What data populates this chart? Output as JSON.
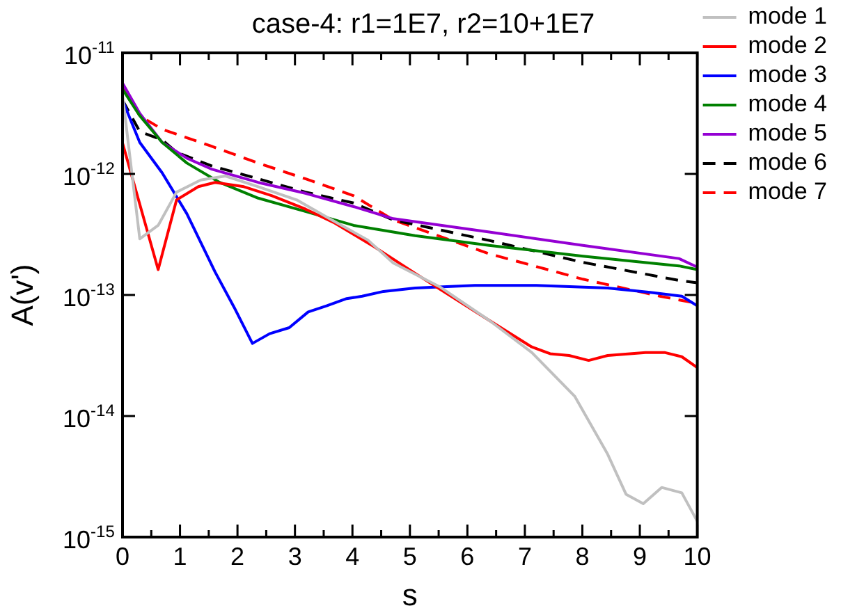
{
  "chart_data": {
    "type": "line",
    "title": "case-4: r1=1E7, r2=10+1E7",
    "xlabel": "s",
    "ylabel": "A(v')",
    "log": "y",
    "grid": false,
    "legend": "right",
    "marker": "none",
    "xlim": [
      0,
      10
    ],
    "xticks": [
      0,
      {
        "value": 0.5,
        "label": null
      },
      1,
      {
        "value": 1.5,
        "label": null
      },
      2,
      {
        "value": 2.5,
        "label": null
      },
      3,
      {
        "value": 3.5,
        "label": null
      },
      4,
      {
        "value": 4.5,
        "label": null
      },
      5,
      {
        "value": 5.5,
        "label": null
      },
      6,
      {
        "value": 6.5,
        "label": null
      },
      7,
      {
        "value": 7.5,
        "label": null
      },
      8,
      {
        "value": 8.5,
        "label": null
      },
      9,
      {
        "value": 9.5,
        "label": null
      },
      10
    ],
    "ylim": [
      1e-15,
      1e-11
    ],
    "yticks": [
      {
        "value": 1e-15,
        "label": "10$^{-15}$"
      },
      {
        "value": 1e-14,
        "label": "10$^{-14}$"
      },
      {
        "value": 1e-13,
        "label": "10$^{-13}$"
      },
      {
        "value": 1e-12,
        "label": "10$^{-12}$"
      },
      {
        "value": 1e-11,
        "label": "10$^{-11}$"
      }
    ],
    "series": [
      {
        "name": "mode 1",
        "color": "#c0c0c0",
        "x": [
          0,
          0.3,
          0.62,
          0.94,
          1.36,
          1.79,
          2.36,
          3.03,
          3.6,
          4.27,
          4.71,
          5.53,
          6.38,
          7.12,
          7.87,
          8.44,
          8.76,
          9.06,
          9.38,
          9.73,
          10
        ],
        "values": [
          4.47e-12,
          2.91e-13,
          3.76e-13,
          7.08e-13,
          8.91e-13,
          9.6e-13,
          7.85e-13,
          6.1e-13,
          4.27e-13,
          2.84e-13,
          1.84e-13,
          1.16e-13,
          6.17e-14,
          3.35e-14,
          1.45e-14,
          4.84e-15,
          2.26e-15,
          1.89e-15,
          2.57e-15,
          2.32e-15,
          1.35e-15
        ]
      },
      {
        "name": "mode 2",
        "color": "#ff0000",
        "x": [
          0,
          0.62,
          0.94,
          1.32,
          1.61,
          2.11,
          2.6,
          3.18,
          3.67,
          4.34,
          5.09,
          5.53,
          6.38,
          7.12,
          7.44,
          7.77,
          8.11,
          8.44,
          9.1,
          9.43,
          9.73,
          10
        ],
        "values": [
          1.8e-12,
          1.62e-13,
          6.1e-13,
          7.85e-13,
          8.51e-13,
          7.85e-13,
          6.61e-13,
          5.13e-13,
          3.98e-13,
          2.57e-13,
          1.51e-13,
          1.11e-13,
          6.17e-14,
          3.72e-14,
          3.27e-14,
          3.16e-14,
          2.88e-14,
          3.16e-14,
          3.35e-14,
          3.35e-14,
          3.09e-14,
          2.51e-14
        ]
      },
      {
        "name": "mode 3",
        "color": "#0000ff",
        "x": [
          0,
          0.3,
          0.69,
          1.12,
          1.61,
          1.94,
          2.26,
          2.56,
          2.9,
          3.23,
          3.55,
          3.9,
          4.17,
          4.54,
          5.09,
          6.13,
          7.2,
          8.44,
          9.18,
          9.73,
          10
        ],
        "values": [
          4.07e-12,
          1.82e-12,
          1.02e-12,
          4.68e-13,
          1.55e-13,
          7.94e-14,
          3.98e-14,
          4.79e-14,
          5.37e-14,
          7.24e-14,
          8.13e-14,
          9.33e-14,
          9.77e-14,
          1.07e-13,
          1.14e-13,
          1.2e-13,
          1.2e-13,
          1.14e-13,
          1.05e-13,
          9.77e-14,
          8.13e-14
        ]
      },
      {
        "name": "mode 4",
        "color": "#008000",
        "x": [
          0,
          0.3,
          0.69,
          1.12,
          1.69,
          2.36,
          3.18,
          4.02,
          4.71,
          5.09,
          6.38,
          8.01,
          9.68,
          10
        ],
        "values": [
          5.01e-12,
          3.02e-12,
          1.82e-12,
          1.23e-12,
          8.51e-13,
          6.31e-13,
          4.9e-13,
          3.76e-13,
          3.31e-13,
          3.09e-13,
          2.57e-13,
          2.09e-13,
          1.74e-13,
          1.62e-13
        ]
      },
      {
        "name": "mode 5",
        "color": "#9400d3",
        "x": [
          0,
          0.3,
          0.69,
          1.12,
          1.54,
          2.36,
          3.18,
          4.02,
          4.71,
          6.38,
          8.01,
          9.68,
          10
        ],
        "values": [
          5.62e-12,
          3.16e-12,
          1.82e-12,
          1.35e-12,
          1.1e-12,
          8.51e-13,
          6.92e-13,
          5.37e-13,
          4.27e-13,
          3.31e-13,
          2.57e-13,
          2e-13,
          1.7e-13
        ]
      },
      {
        "name": "mode 6",
        "color": "#000000",
        "line_style": "dashed",
        "x": [
          0,
          0.3,
          0.69,
          0.94,
          1.54,
          2.36,
          3.18,
          4.02,
          4.71,
          6.38,
          8.01,
          9.68,
          10
        ],
        "values": [
          4.07e-12,
          2.24e-12,
          1.91e-12,
          1.51e-12,
          1.17e-12,
          9.12e-13,
          7.08e-13,
          5.75e-13,
          4.17e-13,
          2.82e-13,
          1.86e-13,
          1.32e-13,
          1.26e-13
        ]
      },
      {
        "name": "mode 7",
        "color": "#ff0000",
        "line_style": "dashed",
        "x": [
          0,
          0.3,
          0.69,
          1.54,
          2.36,
          3.18,
          4.02,
          4.71,
          6.38,
          8.01,
          9.35,
          10
        ],
        "values": [
          5.25e-12,
          3.02e-12,
          2.34e-12,
          1.7e-12,
          1.23e-12,
          9.12e-13,
          6.61e-13,
          4.17e-13,
          2.19e-13,
          1.35e-13,
          9.77e-14,
          8.51e-14
        ]
      }
    ]
  }
}
